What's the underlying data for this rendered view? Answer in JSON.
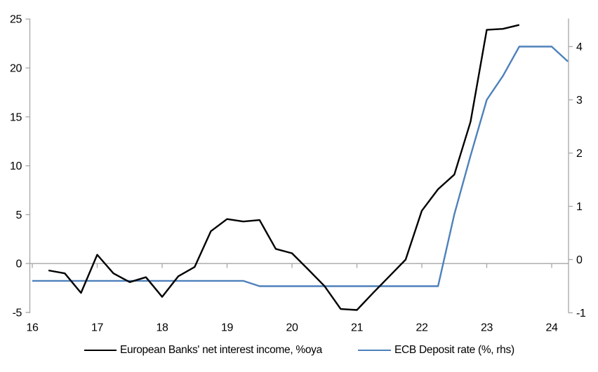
{
  "chart_data": {
    "type": "line",
    "title": "",
    "x_axis": {
      "ticks": [
        "16",
        "17",
        "18",
        "19",
        "20",
        "21",
        "22",
        "23",
        "24"
      ],
      "range": [
        16,
        24.3
      ],
      "unit": "year"
    },
    "left_axis": {
      "ticks": [
        25,
        20,
        15,
        10,
        5,
        0,
        -5
      ],
      "range": [
        -5,
        25
      ]
    },
    "right_axis": {
      "ticks": [
        4,
        3,
        2,
        1,
        0,
        -1
      ],
      "range": [
        -1,
        4.5
      ]
    },
    "grid": "zero-baseline-only",
    "legend_position": "bottom",
    "series": [
      {
        "name": "European Banks' net interest income, %oya",
        "axis": "left",
        "color": "#000000",
        "x": [
          16.25,
          16.5,
          16.75,
          17,
          17.25,
          17.5,
          17.75,
          18,
          18.25,
          18.5,
          18.75,
          19,
          19.25,
          19.5,
          19.75,
          20,
          20.25,
          20.5,
          20.75,
          21,
          21.25,
          21.5,
          21.75,
          22,
          22.25,
          22.5,
          22.75,
          23,
          23.25,
          23.5
        ],
        "y": [
          -0.7,
          -1.0,
          -3.0,
          0.9,
          -1.0,
          -1.9,
          -1.4,
          -3.4,
          -1.3,
          -0.35,
          3.3,
          4.55,
          4.3,
          4.45,
          1.5,
          1.05,
          -0.6,
          -2.3,
          -4.65,
          -4.75,
          -3.0,
          -1.3,
          0.4,
          5.4,
          7.6,
          9.1,
          14.5,
          23.9,
          24.0,
          24.4
        ]
      },
      {
        "name": "ECB Deposit rate (%, rhs)",
        "axis": "right",
        "color": "#4e81bb",
        "x": [
          16,
          16.25,
          16.5,
          16.75,
          17,
          17.25,
          17.5,
          17.75,
          18,
          18.25,
          18.5,
          18.75,
          19,
          19.25,
          19.5,
          19.75,
          20,
          20.25,
          20.5,
          20.75,
          21,
          21.25,
          21.5,
          21.75,
          22,
          22.25,
          22.5,
          22.75,
          23,
          23.25,
          23.5,
          23.75,
          24,
          24.25
        ],
        "y": [
          -0.4,
          -0.4,
          -0.4,
          -0.4,
          -0.4,
          -0.4,
          -0.4,
          -0.4,
          -0.4,
          -0.4,
          -0.4,
          -0.4,
          -0.4,
          -0.4,
          -0.5,
          -0.5,
          -0.5,
          -0.5,
          -0.5,
          -0.5,
          -0.5,
          -0.5,
          -0.5,
          -0.5,
          -0.5,
          -0.5,
          0.85,
          1.95,
          3.0,
          3.45,
          4.0,
          4.0,
          4.0,
          3.72
        ]
      }
    ]
  },
  "colors": {
    "background": "#ffffff",
    "axis": "#a6a6a6",
    "text": "#000000"
  }
}
